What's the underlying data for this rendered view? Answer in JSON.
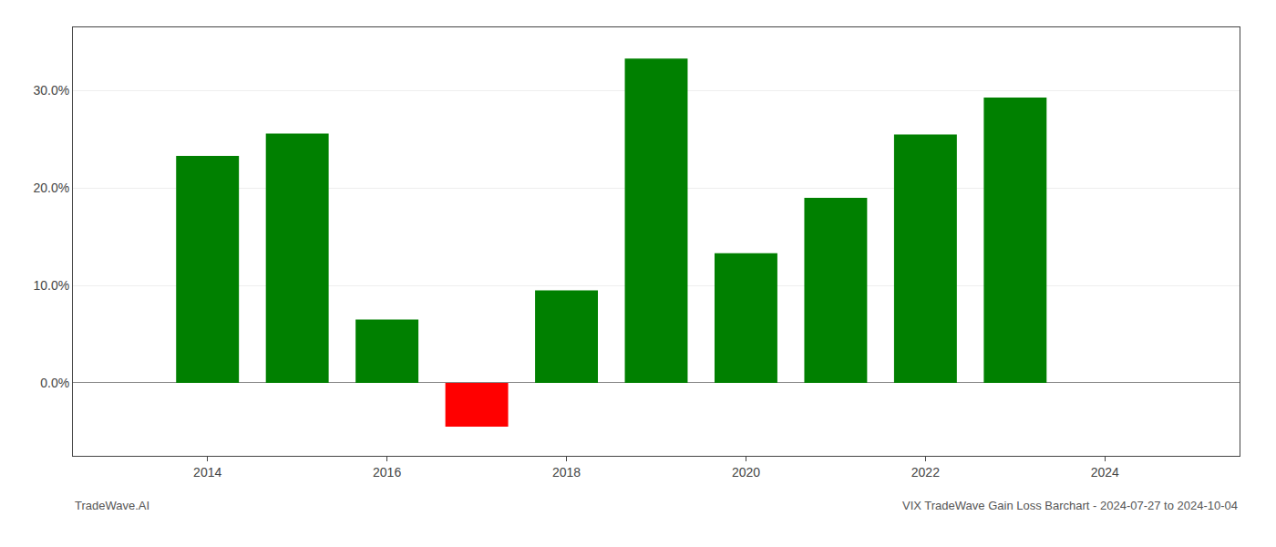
{
  "chart_data": {
    "type": "bar",
    "x": [
      2014,
      2015,
      2016,
      2017,
      2018,
      2019,
      2020,
      2021,
      2022,
      2023
    ],
    "values": [
      0.233,
      0.256,
      0.065,
      -0.045,
      0.095,
      0.333,
      0.133,
      0.19,
      0.255,
      0.293
    ],
    "colors": [
      "#008000",
      "#008000",
      "#008000",
      "#ff0000",
      "#008000",
      "#008000",
      "#008000",
      "#008000",
      "#008000",
      "#008000"
    ],
    "xlim": [
      2012.5,
      2025.5
    ],
    "xticks": [
      2014,
      2016,
      2018,
      2020,
      2022,
      2024
    ],
    "ylim": [
      -0.075,
      0.365
    ],
    "yticks": [
      {
        "value": 0.0,
        "label": "0.0%"
      },
      {
        "value": 0.1,
        "label": "10.0%"
      },
      {
        "value": 0.2,
        "label": "20.0%"
      },
      {
        "value": 0.3,
        "label": "30.0%"
      }
    ],
    "grid": true,
    "annotations": [
      "TradeWave.AI",
      "VIX TradeWave Gain Loss Barchart - 2024-07-27 to 2024-10-04"
    ]
  }
}
